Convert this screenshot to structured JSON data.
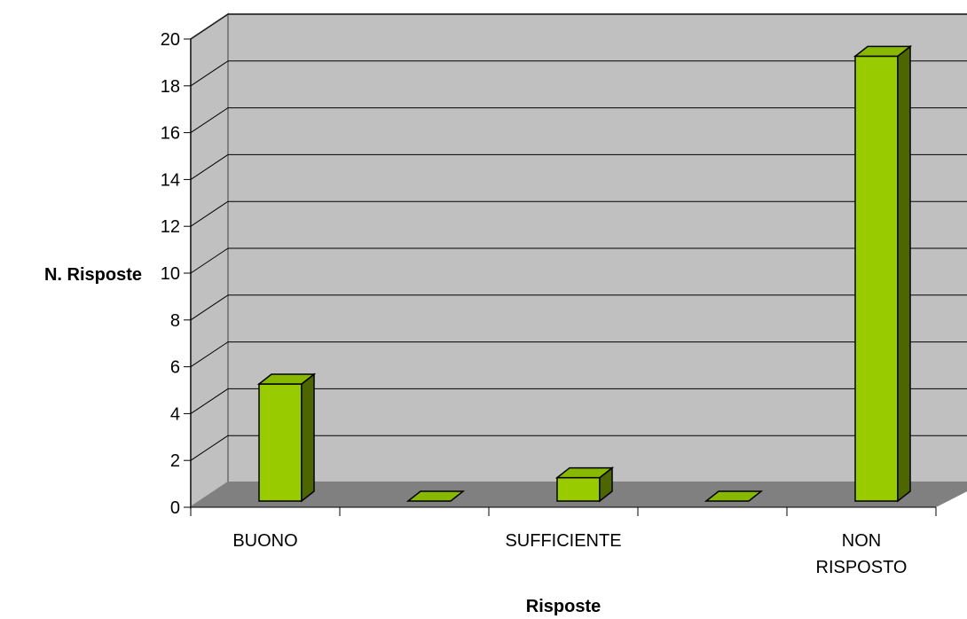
{
  "chart_data": {
    "type": "bar",
    "title": "",
    "categories": [
      "BUONO",
      "",
      "SUFFICIENTE",
      "",
      "NON RISPOSTO"
    ],
    "category_lines": [
      [
        "BUONO"
      ],
      [
        ""
      ],
      [
        "SUFFICIENTE"
      ],
      [
        ""
      ],
      [
        "NON",
        "RISPOSTO"
      ]
    ],
    "values": [
      5,
      0,
      1,
      0,
      19
    ],
    "xlabel": "Risposte",
    "ylabel": "N. Risposte",
    "ylim": [
      0,
      20
    ],
    "yticks": [
      0,
      2,
      4,
      6,
      8,
      10,
      12,
      14,
      16,
      18,
      20
    ],
    "grid": true,
    "legend": "none",
    "style": "3d-column",
    "colors": {
      "wall": "#c0c0c0",
      "floor": "#808080",
      "bar_front": "#99cc00",
      "bar_top": "#88b800",
      "bar_side": "#4d6600",
      "gridline": "#000000"
    }
  }
}
